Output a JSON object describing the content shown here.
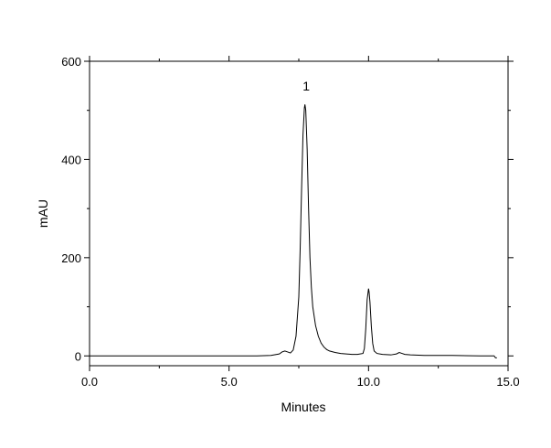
{
  "chart_data": {
    "type": "line",
    "title": "",
    "xlabel": "Minutes",
    "ylabel": "mAU",
    "xlim": [
      0,
      15
    ],
    "ylim": [
      -20,
      600
    ],
    "x_ticks": [
      0,
      5,
      10,
      15
    ],
    "x_tick_labels": [
      "0.0",
      "5.0",
      "10.0",
      "15.0"
    ],
    "y_ticks": [
      0,
      200,
      400,
      600
    ],
    "y_tick_labels": [
      "0",
      "200",
      "400",
      "600"
    ],
    "grid": false,
    "legend": "none",
    "line_color": "#000000",
    "annotations": [
      {
        "text": "1",
        "x": 7.7,
        "y": 540
      }
    ],
    "series": [
      {
        "x": [
          0.0,
          1.0,
          2.0,
          3.0,
          4.0,
          5.0,
          6.0,
          6.5,
          6.8,
          6.9,
          7.0,
          7.1,
          7.2,
          7.3,
          7.4,
          7.5,
          7.55,
          7.6,
          7.65,
          7.7,
          7.72,
          7.75,
          7.8,
          7.85,
          7.9,
          7.95,
          8.0,
          8.1,
          8.2,
          8.3,
          8.4,
          8.5,
          8.6,
          8.8,
          9.0,
          9.2,
          9.4,
          9.6,
          9.8,
          9.85,
          9.9,
          9.95,
          10.0,
          10.02,
          10.05,
          10.1,
          10.15,
          10.2,
          10.3,
          10.5,
          10.8,
          11.0,
          11.1,
          11.2,
          11.3,
          11.5,
          12.0,
          13.0,
          14.0,
          14.5,
          14.55,
          14.6
        ],
        "y": [
          0,
          0,
          0,
          0,
          0,
          0,
          0,
          1,
          4,
          8,
          10,
          8,
          6,
          12,
          40,
          120,
          220,
          340,
          450,
          505,
          512,
          500,
          420,
          300,
          200,
          140,
          100,
          62,
          40,
          26,
          18,
          13,
          10,
          7,
          5,
          4,
          3,
          3,
          5,
          15,
          55,
          115,
          137,
          130,
          110,
          60,
          25,
          10,
          5,
          3,
          2,
          4,
          7,
          5,
          3,
          2,
          1,
          1,
          0,
          0,
          -4,
          -4
        ]
      }
    ]
  }
}
